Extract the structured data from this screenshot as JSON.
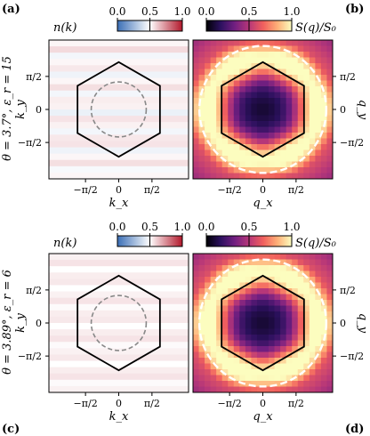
{
  "colors": {
    "nk_low": "#3b6fb6",
    "nk_mid": "#ffffff",
    "nk_high": "#b2182b",
    "magma": [
      "#000004",
      "#2c115f",
      "#721f81",
      "#b73779",
      "#f1605d",
      "#feb078",
      "#fcfdbf"
    ],
    "hexagon": "#000000",
    "circle_k": "#888888",
    "circle_q": "#ffffff"
  },
  "icons": {
    "hexagon": "first-brillouin-zone-hexagon",
    "dashed_circle": "fermi-surface-circle"
  },
  "chart_data": [
    {
      "type": "heatmap",
      "panel": "(a)",
      "row_label": "θ = 3.7°, ε_r = 15",
      "colorbar": {
        "label": "n(k)",
        "ticks": [
          "0.0",
          "0.5",
          "1.0"
        ],
        "range": [
          0,
          1
        ]
      },
      "xlabel": "k_x",
      "ylabel": "k_y",
      "xticks": [
        "−π/2",
        "0",
        "π/2"
      ],
      "yticks": [
        "π/2",
        "0",
        "−π/2"
      ],
      "xlim": [
        -3.3,
        3.3
      ],
      "ylim": [
        -3.3,
        3.3
      ],
      "rows_values": [
        0.52,
        0.58,
        0.47,
        0.52,
        0.55,
        0.46,
        0.52,
        0.57,
        0.47,
        0.54,
        0.53,
        0.45,
        0.56,
        0.53,
        0.47,
        0.55,
        0.56,
        0.46,
        0.52,
        0.57,
        0.48,
        0.52
      ],
      "annotations": [
        "hexagonal Brillouin zone",
        "dashed circle r = 1.3"
      ]
    },
    {
      "type": "heatmap",
      "panel": "(b)",
      "colorbar": {
        "label": "S(q)/S₀",
        "ticks": [
          "0.0",
          "0.5",
          "1.0"
        ],
        "range": [
          0,
          1
        ]
      },
      "xlabel": "q_x",
      "ylabel": "q_y",
      "xticks": [
        "−π/2",
        "0",
        "π/2"
      ],
      "yticks": [
        "π/2",
        "0",
        "−π/2"
      ],
      "xlim": [
        -3.3,
        3.3
      ],
      "ylim": [
        -3.3,
        3.3
      ],
      "peak_radius": 2.6,
      "annotations": [
        "hexagonal Brillouin zone",
        "dashed circle r = 3.0"
      ]
    },
    {
      "type": "heatmap",
      "panel": "(c)",
      "row_label": "θ = 3.89°, ε_r = 6",
      "colorbar": {
        "label": "n(k)",
        "ticks": [
          "0.0",
          "0.5",
          "1.0"
        ],
        "range": [
          0,
          1
        ]
      },
      "xlabel": "k_x",
      "ylabel": "k_y",
      "xticks": [
        "−π/2",
        "0",
        "π/2"
      ],
      "yticks": [
        "π/2",
        "0",
        "−π/2"
      ],
      "xlim": [
        -3.3,
        3.3
      ],
      "ylim": [
        -3.3,
        3.3
      ],
      "rows_values": [
        0.53,
        0.56,
        0.5,
        0.54,
        0.55,
        0.5,
        0.53,
        0.56,
        0.51,
        0.54,
        0.55,
        0.5,
        0.54,
        0.56,
        0.51,
        0.53,
        0.55,
        0.5,
        0.54,
        0.56,
        0.51,
        0.53
      ],
      "annotations": [
        "hexagonal Brillouin zone",
        "dashed circle r = 1.3"
      ]
    },
    {
      "type": "heatmap",
      "panel": "(d)",
      "colorbar": {
        "label": "S(q)/S₀",
        "ticks": [
          "0.0",
          "0.5",
          "1.0"
        ],
        "range": [
          0,
          1
        ]
      },
      "xlabel": "q_x",
      "ylabel": "q_y",
      "xticks": [
        "−π/2",
        "0",
        "π/2"
      ],
      "yticks": [
        "π/2",
        "0",
        "−π/2"
      ],
      "xlim": [
        -3.3,
        3.3
      ],
      "ylim": [
        -3.3,
        3.3
      ],
      "peak_radius": 2.6,
      "annotations": [
        "hexagonal Brillouin zone",
        "dashed circle r = 3.0"
      ]
    }
  ]
}
